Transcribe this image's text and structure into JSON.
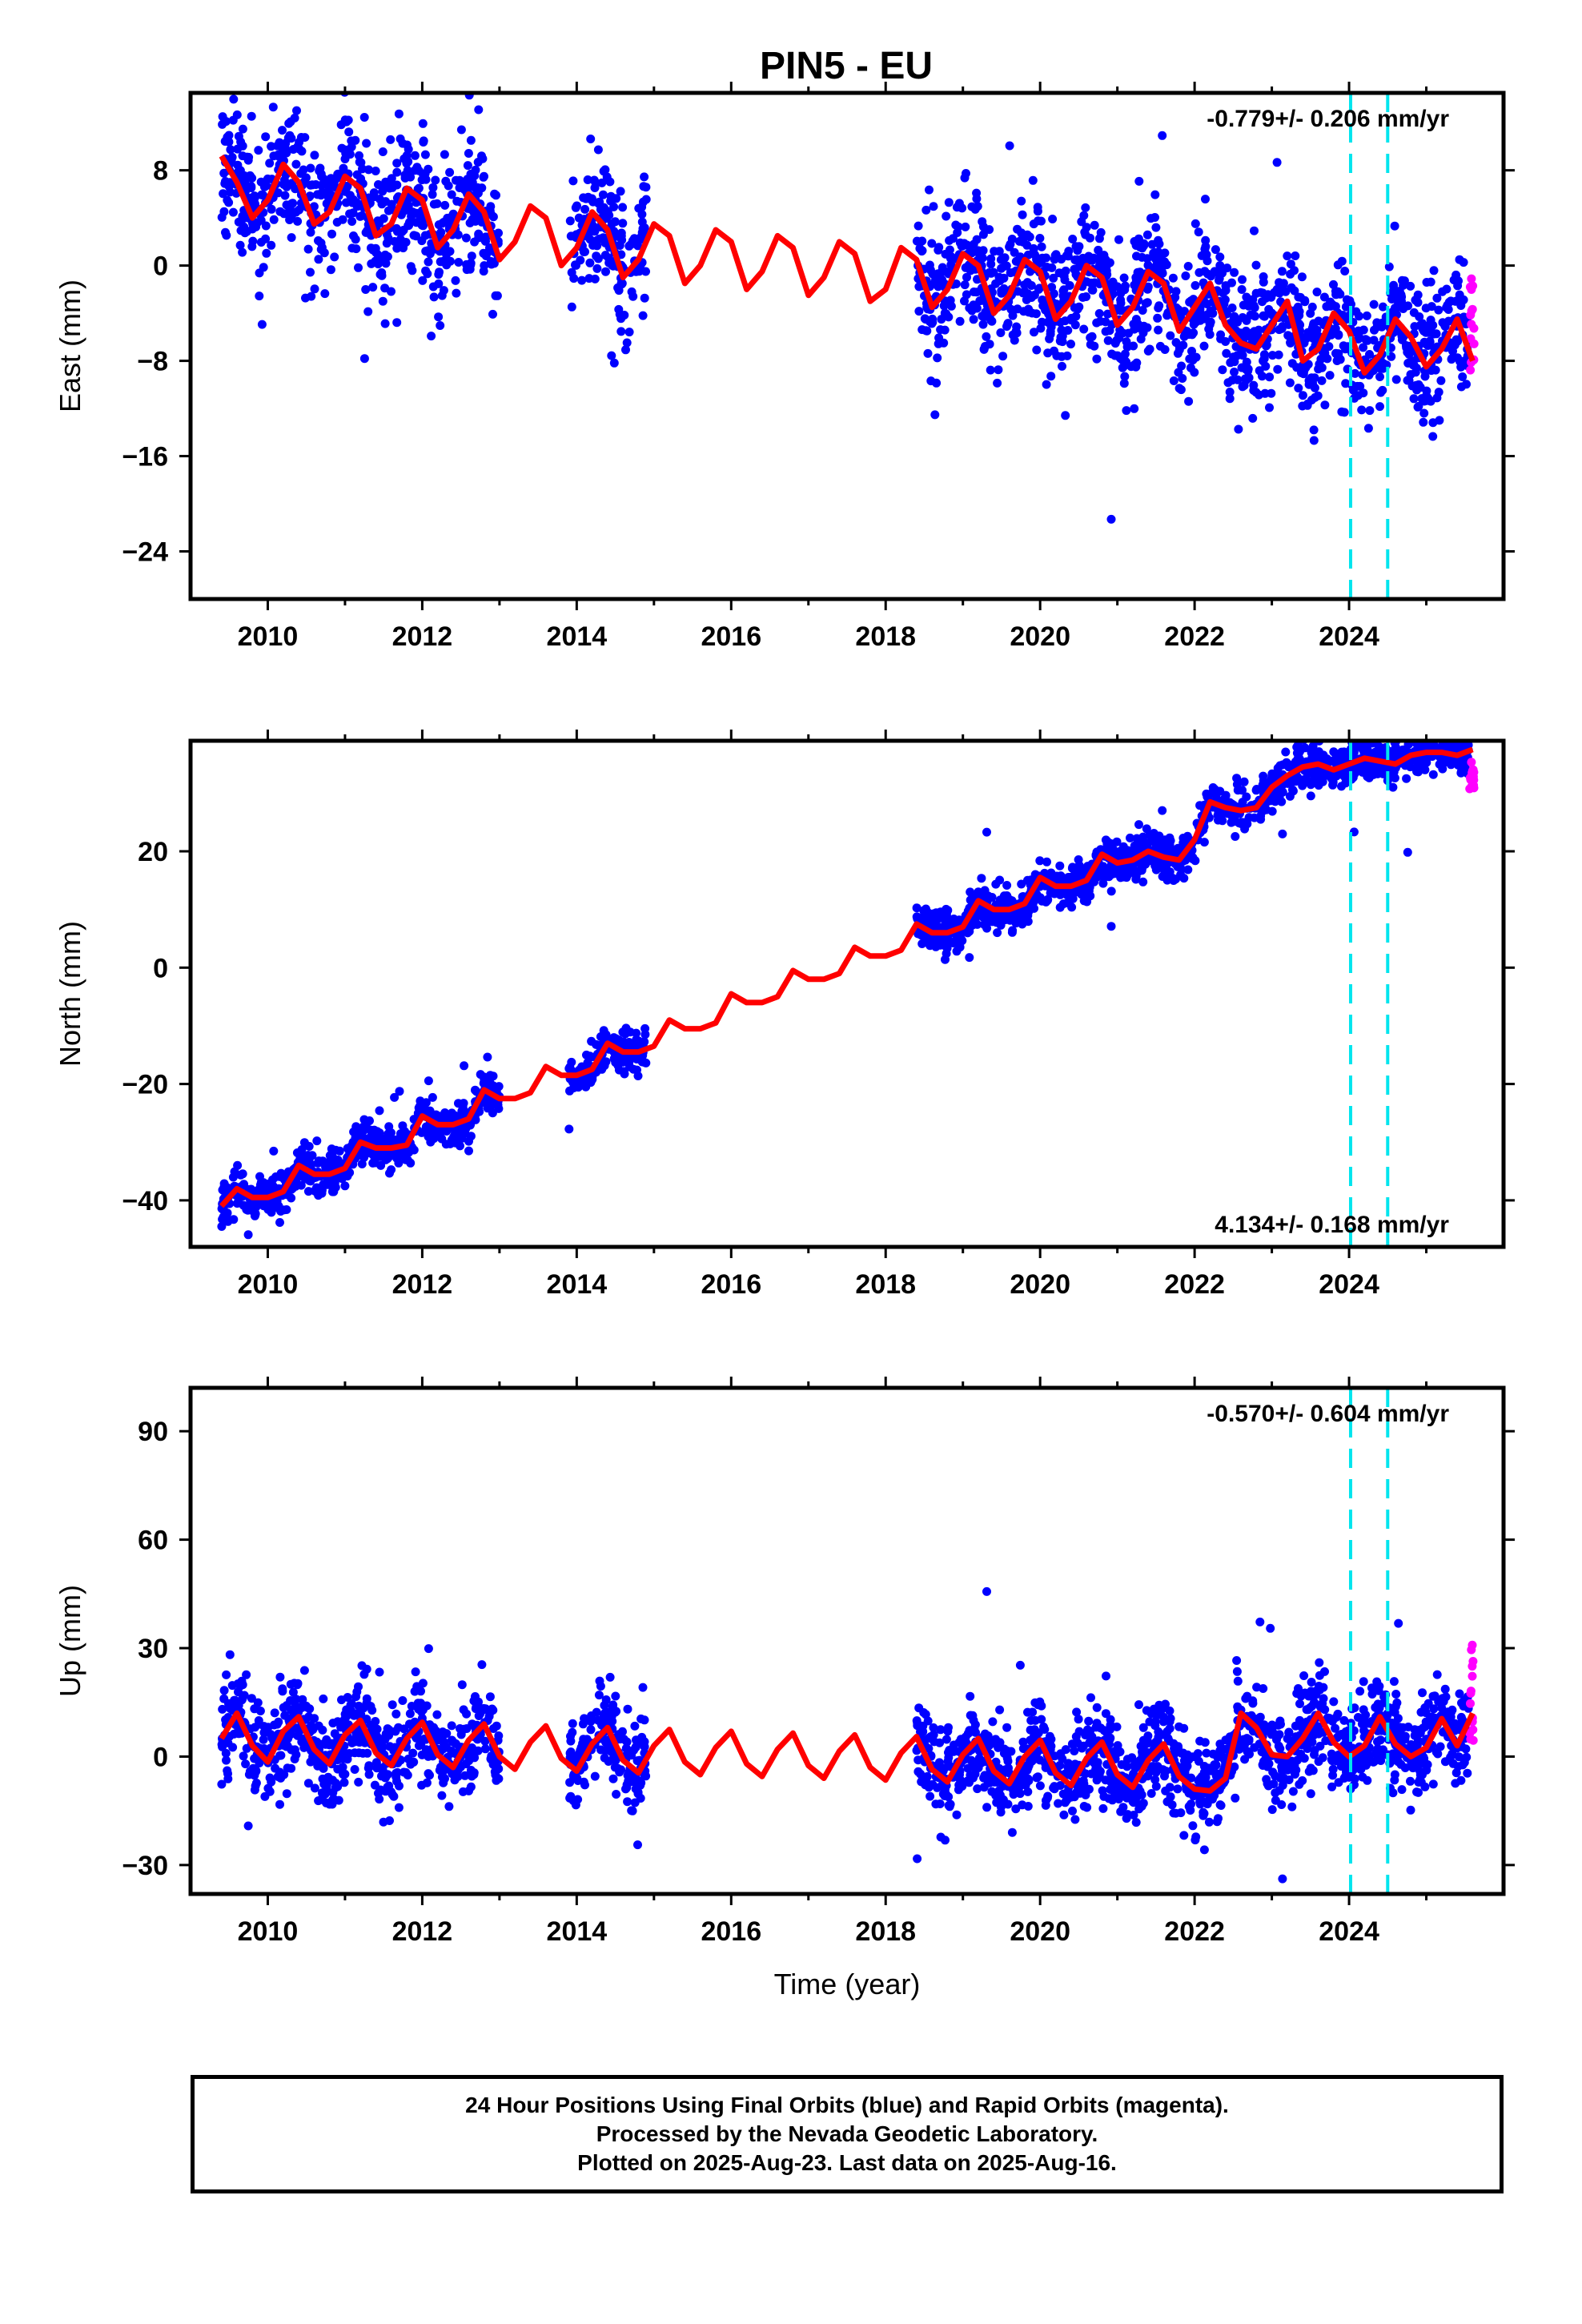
{
  "title": "PIN5 - EU",
  "footer": {
    "line1": "24 Hour Positions Using Final Orbits (blue) and Rapid Orbits (magenta).",
    "line2": "Processed by the Nevada Geodetic Laboratory.",
    "line3": "Plotted on 2025-Aug-23. Last data on 2025-Aug-16."
  },
  "colors": {
    "final_orbits": "#0000ff",
    "rapid_orbits": "#ff00ff",
    "model_fit": "#ff0000",
    "steps": "#00e5ee",
    "axes": "#000000"
  },
  "chart_data": [
    {
      "type": "scatter",
      "name": "east",
      "ylabel": "East (mm)",
      "xlabel": "",
      "xlim": [
        2009.0,
        2026.0
      ],
      "ylim": [
        -28.0,
        14.5
      ],
      "xticks": [
        2010,
        2012,
        2014,
        2016,
        2018,
        2020,
        2022,
        2024
      ],
      "yticks": [
        8,
        0,
        -8,
        -16,
        -24
      ],
      "ytick_labels": [
        "8",
        "0",
        "−8",
        "−16",
        "−24"
      ],
      "xtick_labels": [
        "2010",
        "2012",
        "2014",
        "2016",
        "2018",
        "2020",
        "2022",
        "2024"
      ],
      "rate_text": "-0.779+/- 0.206 mm/yr",
      "rate_position": "top-right",
      "steps": [
        2024.02,
        2024.5
      ],
      "model": {
        "x": [
          2009.4,
          2009.6,
          2009.8,
          2010.0,
          2010.2,
          2010.4,
          2010.6,
          2010.8,
          2011.0,
          2011.2,
          2011.4,
          2011.6,
          2011.8,
          2012.0,
          2012.2,
          2012.4,
          2012.6,
          2012.8,
          2013.0,
          2013.2,
          2013.4,
          2013.6,
          2013.8,
          2014.0,
          2014.2,
          2014.4,
          2014.6,
          2014.8,
          2015.0,
          2015.2,
          2015.4,
          2015.6,
          2015.8,
          2016.0,
          2016.2,
          2016.4,
          2016.6,
          2016.8,
          2017.0,
          2017.2,
          2017.4,
          2017.6,
          2017.8,
          2018.0,
          2018.2,
          2018.4,
          2018.6,
          2018.8,
          2019.0,
          2019.2,
          2019.4,
          2019.6,
          2019.8,
          2020.0,
          2020.2,
          2020.4,
          2020.6,
          2020.8,
          2021.0,
          2021.2,
          2021.4,
          2021.6,
          2021.8,
          2022.0,
          2022.2,
          2022.4,
          2022.6,
          2022.8,
          2023.0,
          2023.2,
          2023.4,
          2023.6,
          2023.8,
          2024.0,
          2024.2,
          2024.4,
          2024.6,
          2024.8,
          2025.0,
          2025.2,
          2025.4,
          2025.6
        ],
        "y": [
          9.2,
          7.0,
          4.0,
          5.5,
          8.5,
          7.0,
          3.5,
          4.5,
          7.5,
          6.5,
          2.5,
          3.5,
          6.5,
          5.5,
          1.5,
          3.0,
          6.0,
          4.5,
          0.5,
          2.0,
          5.0,
          4.0,
          0.0,
          1.5,
          4.5,
          3.0,
          -1.0,
          0.5,
          3.5,
          2.5,
          -1.5,
          0.0,
          3.0,
          2.0,
          -2.0,
          -0.5,
          2.5,
          1.5,
          -2.5,
          -1.0,
          2.0,
          1.0,
          -3.0,
          -2.0,
          1.5,
          0.5,
          -3.5,
          -2.0,
          1.0,
          0.0,
          -4.0,
          -2.5,
          0.5,
          -0.5,
          -4.5,
          -3.0,
          0.0,
          -1.0,
          -5.0,
          -3.5,
          -0.5,
          -1.5,
          -5.5,
          -3.5,
          -1.5,
          -5.0,
          -6.5,
          -7.0,
          -5.0,
          -3.0,
          -8.0,
          -7.0,
          -4.0,
          -5.5,
          -9.0,
          -7.5,
          -4.5,
          -6.0,
          -8.5,
          -7.0,
          -4.5,
          -8.0
        ]
      },
      "final_orbits_series": {
        "segments": [
          [
            2009.4,
            2013.0
          ],
          [
            2013.9,
            2014.9
          ],
          [
            2018.4,
            2025.55
          ]
        ],
        "noise_mm": 2.8
      },
      "rapid_orbits_series": {
        "x_range": [
          2025.56,
          2025.62
        ],
        "y_range": [
          -9.0,
          -1.0
        ]
      }
    },
    {
      "type": "scatter",
      "name": "north",
      "ylabel": "North (mm)",
      "xlabel": "",
      "xlim": [
        2009.0,
        2026.0
      ],
      "ylim": [
        -48.0,
        39.0
      ],
      "xticks": [
        2010,
        2012,
        2014,
        2016,
        2018,
        2020,
        2022,
        2024
      ],
      "yticks": [
        20,
        0,
        -20,
        -40
      ],
      "ytick_labels": [
        "20",
        "0",
        "−20",
        "−40"
      ],
      "xtick_labels": [
        "2010",
        "2012",
        "2014",
        "2016",
        "2018",
        "2020",
        "2022",
        "2024"
      ],
      "rate_text": "4.134+/- 0.168 mm/yr",
      "rate_position": "bottom-right",
      "steps": [
        2024.02,
        2024.5
      ],
      "model": {
        "x": [
          2009.4,
          2009.6,
          2009.8,
          2010.0,
          2010.2,
          2010.4,
          2010.6,
          2010.8,
          2011.0,
          2011.2,
          2011.4,
          2011.6,
          2011.8,
          2012.0,
          2012.2,
          2012.4,
          2012.6,
          2012.8,
          2013.0,
          2013.2,
          2013.4,
          2013.6,
          2013.8,
          2014.0,
          2014.2,
          2014.4,
          2014.6,
          2014.8,
          2015.0,
          2015.2,
          2015.4,
          2015.6,
          2015.8,
          2016.0,
          2016.2,
          2016.4,
          2016.6,
          2016.8,
          2017.0,
          2017.2,
          2017.4,
          2017.6,
          2017.8,
          2018.0,
          2018.2,
          2018.4,
          2018.6,
          2018.8,
          2019.0,
          2019.2,
          2019.4,
          2019.6,
          2019.8,
          2020.0,
          2020.2,
          2020.4,
          2020.6,
          2020.8,
          2021.0,
          2021.2,
          2021.4,
          2021.6,
          2021.8,
          2022.0,
          2022.2,
          2022.4,
          2022.6,
          2022.8,
          2023.0,
          2023.2,
          2023.4,
          2023.6,
          2023.8,
          2024.0,
          2024.2,
          2024.4,
          2024.6,
          2024.8,
          2025.0,
          2025.2,
          2025.4,
          2025.6
        ],
        "y": [
          -41.0,
          -38.0,
          -39.5,
          -39.5,
          -38.5,
          -34.0,
          -35.5,
          -35.5,
          -34.5,
          -30.0,
          -31.0,
          -31.0,
          -30.5,
          -25.5,
          -27.0,
          -27.0,
          -26.0,
          -21.0,
          -22.5,
          -22.5,
          -21.5,
          -17.0,
          -18.5,
          -18.5,
          -17.5,
          -13.0,
          -14.5,
          -14.5,
          -13.5,
          -9.0,
          -10.5,
          -10.5,
          -9.5,
          -4.5,
          -6.0,
          -6.0,
          -5.0,
          -0.5,
          -2.0,
          -2.0,
          -1.0,
          3.5,
          2.0,
          2.0,
          3.0,
          7.5,
          6.0,
          6.0,
          7.0,
          11.5,
          10.0,
          10.0,
          11.0,
          15.5,
          14.0,
          14.0,
          15.0,
          19.5,
          18.0,
          18.5,
          20.0,
          19.0,
          18.5,
          22.0,
          28.5,
          27.5,
          27.0,
          27.5,
          31.0,
          33.0,
          34.5,
          35.0,
          34.0,
          35.0,
          36.0,
          35.5,
          35.0,
          36.5,
          37.0,
          37.0,
          36.5,
          37.5
        ],
        "note": ""
      },
      "final_orbits_series": {
        "segments": [
          [
            2009.4,
            2013.0
          ],
          [
            2013.9,
            2014.9
          ],
          [
            2018.4,
            2025.55
          ]
        ],
        "noise_mm": 1.8
      },
      "rapid_orbits_series": {
        "x_range": [
          2025.56,
          2025.62
        ],
        "y_range": [
          30.0,
          36.0
        ]
      }
    },
    {
      "type": "scatter",
      "name": "up",
      "ylabel": "Up (mm)",
      "xlabel": "Time (year)",
      "xlim": [
        2009.0,
        2026.0
      ],
      "ylim": [
        -38.0,
        102.0
      ],
      "xticks": [
        2010,
        2012,
        2014,
        2016,
        2018,
        2020,
        2022,
        2024
      ],
      "yticks": [
        90,
        60,
        30,
        0,
        -30
      ],
      "ytick_labels": [
        "90",
        "60",
        "30",
        "0",
        "−30"
      ],
      "xtick_labels": [
        "2010",
        "2012",
        "2014",
        "2016",
        "2018",
        "2020",
        "2022",
        "2024"
      ],
      "rate_text": "-0.570+/- 0.604 mm/yr",
      "rate_position": "top-right",
      "steps": [
        2024.02,
        2024.5
      ],
      "model": {
        "x": [
          2009.4,
          2009.6,
          2009.8,
          2010.0,
          2010.2,
          2010.4,
          2010.6,
          2010.8,
          2011.0,
          2011.2,
          2011.4,
          2011.6,
          2011.8,
          2012.0,
          2012.2,
          2012.4,
          2012.6,
          2012.8,
          2013.0,
          2013.2,
          2013.4,
          2013.6,
          2013.8,
          2014.0,
          2014.2,
          2014.4,
          2014.6,
          2014.8,
          2015.0,
          2015.2,
          2015.4,
          2015.6,
          2015.8,
          2016.0,
          2016.2,
          2016.4,
          2016.6,
          2016.8,
          2017.0,
          2017.2,
          2017.4,
          2017.6,
          2017.8,
          2018.0,
          2018.2,
          2018.4,
          2018.6,
          2018.8,
          2019.0,
          2019.2,
          2019.4,
          2019.6,
          2019.8,
          2020.0,
          2020.2,
          2020.4,
          2020.6,
          2020.8,
          2021.0,
          2021.2,
          2021.4,
          2021.6,
          2021.8,
          2022.0,
          2022.2,
          2022.4,
          2022.6,
          2022.8,
          2023.0,
          2023.2,
          2023.4,
          2023.6,
          2023.8,
          2024.0,
          2024.2,
          2024.4,
          2024.6,
          2024.8,
          2025.0,
          2025.2,
          2025.4,
          2025.6
        ],
        "y": [
          5.0,
          12.0,
          3.0,
          -1.5,
          7.0,
          11.0,
          2.0,
          -2.0,
          6.0,
          10.0,
          1.0,
          -2.5,
          5.0,
          9.5,
          0.5,
          -3.0,
          4.5,
          9.0,
          0.0,
          -3.5,
          4.0,
          8.5,
          -0.5,
          -4.0,
          3.5,
          8.0,
          -1.0,
          -4.5,
          3.0,
          7.5,
          -1.5,
          -5.0,
          2.5,
          7.0,
          -2.0,
          -5.5,
          2.0,
          6.5,
          -2.5,
          -6.0,
          1.5,
          6.0,
          -3.0,
          -6.5,
          1.0,
          5.5,
          -3.5,
          -7.0,
          0.5,
          5.0,
          -4.0,
          -7.5,
          0.0,
          4.5,
          -4.5,
          -8.0,
          -0.5,
          4.0,
          -5.0,
          -8.5,
          -1.0,
          3.5,
          -5.5,
          -9.0,
          -9.5,
          -6.0,
          12.0,
          8.0,
          0.5,
          0.0,
          5.0,
          12.0,
          4.0,
          0.0,
          3.0,
          11.0,
          3.5,
          0.0,
          2.5,
          10.5,
          3.0,
          12.0
        ]
      },
      "final_orbits_series": {
        "segments": [
          [
            2009.4,
            2013.0
          ],
          [
            2013.9,
            2014.9
          ],
          [
            2018.4,
            2025.55
          ]
        ],
        "noise_mm": 6.5
      },
      "rapid_orbits_series": {
        "x_range": [
          2025.56,
          2025.62
        ],
        "y_range": [
          4.0,
          34.0
        ]
      }
    }
  ]
}
